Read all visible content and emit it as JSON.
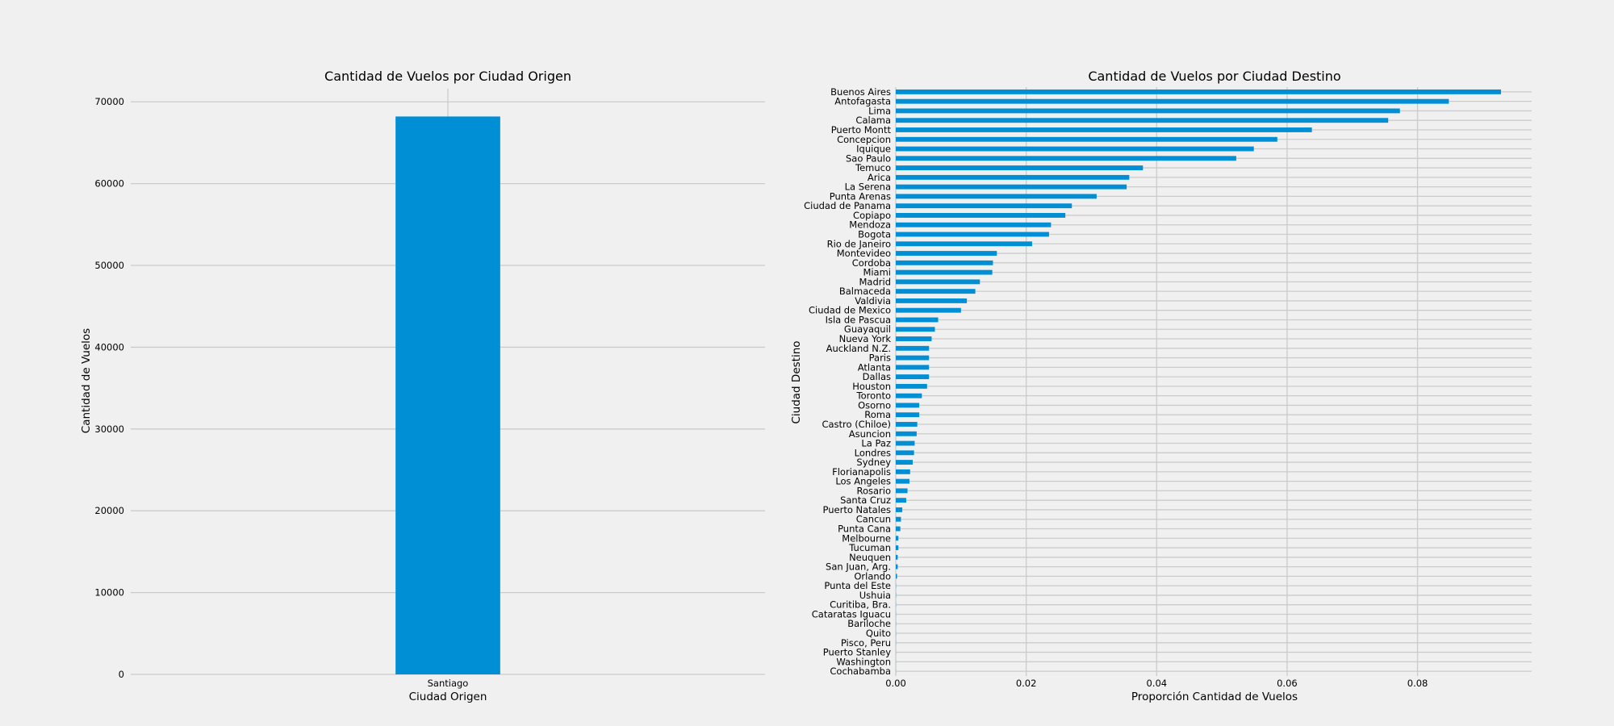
{
  "chart_data": [
    {
      "type": "bar",
      "orientation": "vertical",
      "title": "Cantidad de Vuelos por Ciudad Origen",
      "xlabel": "Ciudad Origen",
      "ylabel": "Cantidad de Vuelos",
      "categories": [
        "Santiago"
      ],
      "values": [
        68206
      ],
      "ylim": [
        0,
        71600
      ],
      "yticks": [
        0,
        10000,
        20000,
        30000,
        40000,
        50000,
        60000,
        70000
      ],
      "grid": true,
      "color": "#008fd5"
    },
    {
      "type": "bar",
      "orientation": "horizontal",
      "title": "Cantidad de Vuelos por Ciudad Destino",
      "xlabel": "Proporción Cantidad de Vuelos",
      "ylabel": "Ciudad Destino",
      "categories": [
        "Buenos Aires",
        "Antofagasta",
        "Lima",
        "Calama",
        "Puerto Montt",
        "Concepcion",
        "Iquique",
        "Sao Paulo",
        "Temuco",
        "Arica",
        "La Serena",
        "Punta Arenas",
        "Ciudad de Panama",
        "Copiapo",
        "Mendoza",
        "Bogota",
        "Rio de Janeiro",
        "Montevideo",
        "Cordoba",
        "Miami",
        "Madrid",
        "Balmaceda",
        "Valdivia",
        "Ciudad de Mexico",
        "Isla de Pascua",
        "Guayaquil",
        "Nueva York",
        "Auckland N.Z.",
        "Paris",
        "Atlanta",
        "Dallas",
        "Houston",
        "Toronto",
        "Osorno",
        "Roma",
        "Castro (Chiloe)",
        "Asuncion",
        "La Paz",
        "Londres",
        "Sydney",
        "Florianapolis",
        "Los Angeles",
        "Rosario",
        "Santa Cruz",
        "Puerto Natales",
        "Cancun",
        "Punta Cana",
        "Melbourne",
        "Tucuman",
        "Neuquen",
        "San Juan, Arg.",
        "Orlando",
        "Punta del Este",
        "Ushuia",
        "Curitiba, Bra.",
        "Cataratas Iguacu",
        "Bariloche",
        "Quito",
        "Pisco, Peru",
        "Puerto Stanley",
        "Washington",
        "Cochabamba"
      ],
      "values": [
        0.0928,
        0.0848,
        0.0773,
        0.0755,
        0.0638,
        0.0585,
        0.0549,
        0.0522,
        0.0379,
        0.0358,
        0.0354,
        0.0308,
        0.027,
        0.026,
        0.0238,
        0.0235,
        0.0209,
        0.0155,
        0.0149,
        0.0148,
        0.0129,
        0.0122,
        0.0109,
        0.01,
        0.0065,
        0.006,
        0.0055,
        0.0051,
        0.0051,
        0.0051,
        0.0051,
        0.0048,
        0.004,
        0.0036,
        0.0036,
        0.0033,
        0.0032,
        0.0029,
        0.0028,
        0.0026,
        0.0022,
        0.0021,
        0.0018,
        0.0016,
        0.001,
        0.0008,
        0.0007,
        0.0004,
        0.0004,
        0.0003,
        0.0003,
        0.0002,
        3e-05,
        3e-05,
        2e-05,
        2e-05,
        2e-05,
        2e-05,
        2e-05,
        1e-05,
        1e-05,
        1e-05
      ],
      "xlim": [
        0,
        0.0975
      ],
      "xticks": [
        0.0,
        0.02,
        0.04,
        0.06,
        0.08
      ],
      "xtick_labels": [
        "0.00",
        "0.02",
        "0.04",
        "0.06",
        "0.08"
      ],
      "grid": true,
      "color": "#008fd5"
    }
  ]
}
